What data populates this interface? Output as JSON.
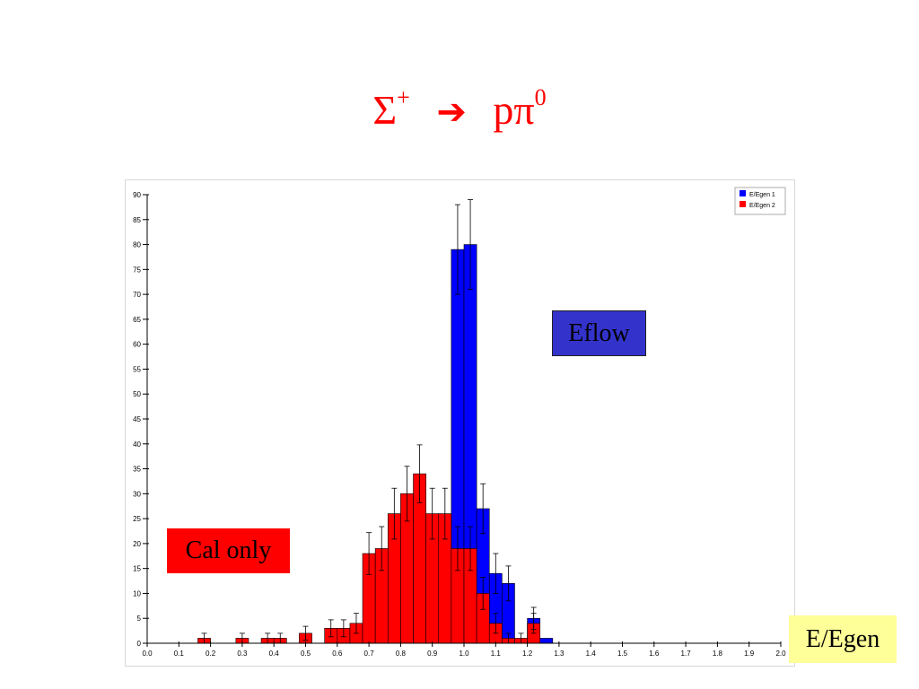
{
  "title": {
    "base": "Σ",
    "sup": "+",
    "arrow": "➔",
    "rhs": "pπ",
    "rhs_sup": "0"
  },
  "labels": {
    "eflow": "Eflow",
    "cal_only": "Cal only",
    "xaxis": "E/Egen"
  },
  "colors": {
    "series1": "#0000ff",
    "series2": "#ff0000",
    "title": "#ff0000",
    "eflow_bg": "#3333cc",
    "cal_bg": "#ff0000",
    "xaxis_bg": "#ffff99"
  },
  "chart_data": {
    "type": "bar",
    "bin_width": 0.04,
    "xlim": [
      0.0,
      2.0
    ],
    "ylim": [
      0,
      90
    ],
    "xticks": [
      "0.0",
      "0.1",
      "0.2",
      "0.3",
      "0.4",
      "0.5",
      "0.6",
      "0.7",
      "0.8",
      "0.9",
      "1.0",
      "1.1",
      "1.2",
      "1.3",
      "1.4",
      "1.5",
      "1.6",
      "1.7",
      "1.8",
      "1.9",
      "2.0"
    ],
    "yticks": [
      "0",
      "5",
      "10",
      "15",
      "20",
      "25",
      "30",
      "35",
      "40",
      "45",
      "50",
      "55",
      "60",
      "65",
      "70",
      "75",
      "80",
      "85",
      "90"
    ],
    "legend": "top-right",
    "series": [
      {
        "name": "E/Egen 1",
        "color": "#0000ff",
        "bins": [
          {
            "x0": 0.96,
            "value": 79,
            "err": 9
          },
          {
            "x0": 1.0,
            "value": 80,
            "err": 9
          },
          {
            "x0": 1.04,
            "value": 27,
            "err": 5
          },
          {
            "x0": 1.08,
            "value": 14,
            "err": 4
          },
          {
            "x0": 1.12,
            "value": 12,
            "err": 3.5
          },
          {
            "x0": 1.2,
            "value": 5,
            "err": 2.2
          },
          {
            "x0": 1.24,
            "value": 1,
            "err": 0
          }
        ]
      },
      {
        "name": "E/Egen 2",
        "color": "#ff0000",
        "bins": [
          {
            "x0": 0.16,
            "value": 1,
            "err": 1
          },
          {
            "x0": 0.28,
            "value": 1,
            "err": 1
          },
          {
            "x0": 0.36,
            "value": 1,
            "err": 1
          },
          {
            "x0": 0.4,
            "value": 1,
            "err": 1
          },
          {
            "x0": 0.48,
            "value": 2,
            "err": 1.4
          },
          {
            "x0": 0.56,
            "value": 3,
            "err": 1.7
          },
          {
            "x0": 0.6,
            "value": 3,
            "err": 1.7
          },
          {
            "x0": 0.64,
            "value": 4,
            "err": 2
          },
          {
            "x0": 0.68,
            "value": 18,
            "err": 4.2
          },
          {
            "x0": 0.72,
            "value": 19,
            "err": 4.4
          },
          {
            "x0": 0.76,
            "value": 26,
            "err": 5.1
          },
          {
            "x0": 0.8,
            "value": 30,
            "err": 5.5
          },
          {
            "x0": 0.84,
            "value": 34,
            "err": 5.8
          },
          {
            "x0": 0.88,
            "value": 26,
            "err": 5.1
          },
          {
            "x0": 0.92,
            "value": 26,
            "err": 5.1
          },
          {
            "x0": 0.96,
            "value": 19,
            "err": 4.4
          },
          {
            "x0": 1.0,
            "value": 19,
            "err": 4.4
          },
          {
            "x0": 1.04,
            "value": 10,
            "err": 3.2
          },
          {
            "x0": 1.08,
            "value": 4,
            "err": 2
          },
          {
            "x0": 1.12,
            "value": 1,
            "err": 1
          },
          {
            "x0": 1.16,
            "value": 1,
            "err": 1
          },
          {
            "x0": 1.2,
            "value": 4,
            "err": 2
          }
        ]
      }
    ]
  }
}
